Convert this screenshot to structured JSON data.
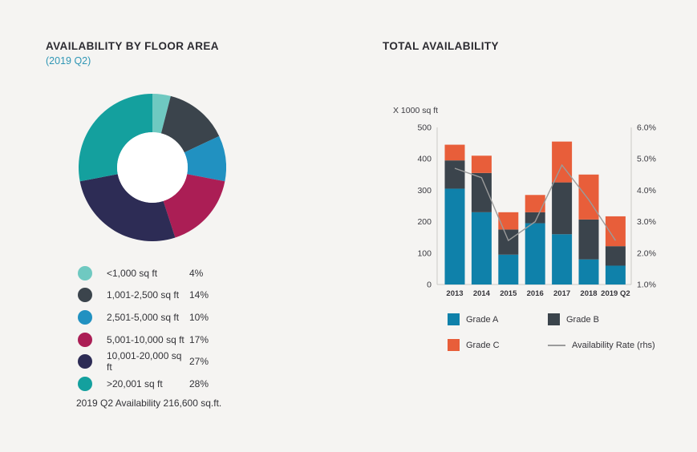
{
  "page": {
    "background": "#f5f4f2"
  },
  "left_panel": {
    "title": "AVAILABILITY BY FLOOR AREA",
    "subtitle": "(2019 Q2)",
    "subtitle_color": "#2f96b5",
    "footer": "2019 Q2 Availability 216,600 sq.ft."
  },
  "right_panel": {
    "title": "TOTAL AVAILABILITY",
    "axis_unit_label": "X 1000 sq ft"
  },
  "chart_data": [
    {
      "type": "pie",
      "subtype": "donut",
      "title": "AVAILABILITY BY FLOOR AREA (2019 Q2)",
      "start_angle_deg": 0,
      "clockwise": true,
      "hole_color": "#ffffff",
      "segments": [
        {
          "label": "<1,000 sq ft",
          "value_pct": 4,
          "color": "#6fc9c1"
        },
        {
          "label": "1,001-2,500 sq ft",
          "value_pct": 14,
          "color": "#3b444c"
        },
        {
          "label": "2,501-5,000 sq ft",
          "value_pct": 10,
          "color": "#2191c1"
        },
        {
          "label": "5,001-10,000 sq ft",
          "value_pct": 17,
          "color": "#ab1e55"
        },
        {
          "label": "10,001-20,000 sq ft",
          "value_pct": 27,
          "color": "#2d2c55"
        },
        {
          "label": ">20,001 sq ft",
          "value_pct": 28,
          "color": "#14a09e"
        }
      ],
      "annotation": "2019 Q2 Availability 216,600 sq.ft.",
      "legend_position": "bottom"
    },
    {
      "type": "bar",
      "stacked": true,
      "title": "TOTAL AVAILABILITY",
      "ylabel": "X 1000 sq ft",
      "categories": [
        "2013",
        "2014",
        "2015",
        "2016",
        "2017",
        "2018",
        "2019 Q2"
      ],
      "series": [
        {
          "name": "Grade A",
          "color": "#0f81aa",
          "values": [
            305,
            230,
            95,
            195,
            160,
            80,
            60
          ]
        },
        {
          "name": "Grade B",
          "color": "#3b444c",
          "values": [
            90,
            125,
            80,
            35,
            165,
            127,
            62
          ]
        },
        {
          "name": "Grade C",
          "color": "#e85e3a",
          "values": [
            50,
            55,
            55,
            55,
            130,
            143,
            95
          ]
        }
      ],
      "line_series": {
        "name": "Availability Rate (rhs)",
        "color": "#9b9b9b",
        "axis": "right",
        "values": [
          4.7,
          4.4,
          2.4,
          3.0,
          4.8,
          3.7,
          2.4
        ]
      },
      "y_left": {
        "min": 0,
        "max": 500,
        "ticks": [
          0,
          100,
          200,
          300,
          400,
          500
        ]
      },
      "y_right": {
        "min": 1.0,
        "max": 6.0,
        "tick_labels": [
          "1.0%",
          "2.0%",
          "3.0%",
          "4.0%",
          "5.0%",
          "6.0%"
        ]
      },
      "grid": false,
      "legend_position": "bottom",
      "axis_color": "#cbcac6"
    }
  ]
}
